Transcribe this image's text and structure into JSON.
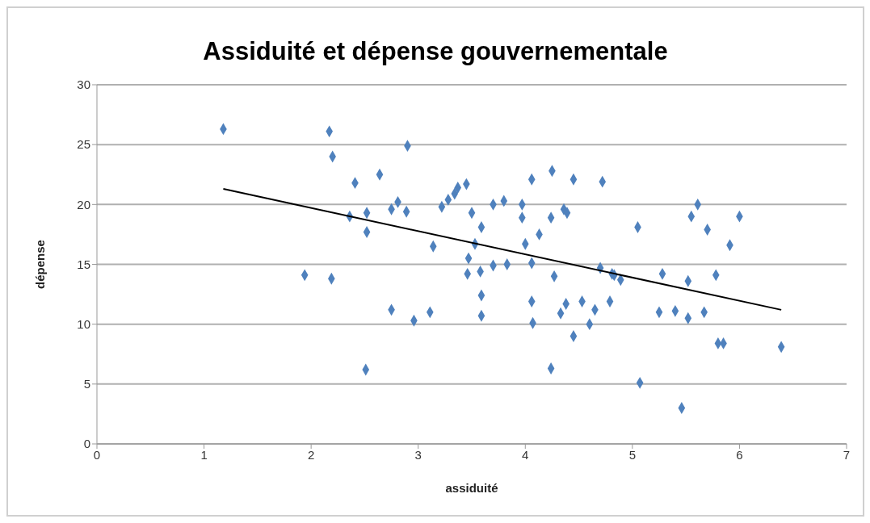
{
  "chart_data": {
    "type": "scatter",
    "title": "Assiduité et dépense gouvernementale",
    "xlabel": "assiduité",
    "ylabel": "dépense",
    "xlim": [
      0,
      7
    ],
    "xticks": [
      0,
      1,
      2,
      3,
      4,
      5,
      6,
      7
    ],
    "ylim": [
      0,
      30
    ],
    "yticks": [
      0,
      5,
      10,
      15,
      20,
      25,
      30
    ],
    "grid": "y",
    "legend": false,
    "series": [
      {
        "color": "#4f81bd",
        "marker": "diamond",
        "x": [
          1.18,
          2.17,
          2.2,
          1.94,
          2.19,
          2.41,
          2.36,
          2.64,
          2.9,
          2.52,
          2.52,
          2.75,
          2.81,
          2.89,
          2.51,
          2.75,
          2.96,
          3.11,
          3.14,
          3.22,
          3.28,
          3.34,
          3.37,
          3.45,
          3.5,
          3.59,
          3.53,
          3.47,
          3.46,
          3.58,
          3.59,
          3.59,
          3.7,
          3.8,
          3.7,
          3.83,
          3.97,
          3.97,
          4.0,
          4.06,
          4.06,
          4.06,
          4.07,
          4.13,
          4.24,
          4.25,
          4.24,
          4.27,
          4.33,
          4.38,
          4.36,
          4.39,
          4.45,
          4.45,
          4.53,
          4.6,
          4.65,
          4.72,
          4.7,
          4.79,
          4.81,
          4.83,
          4.89,
          5.05,
          5.07,
          5.28,
          5.25,
          5.4,
          5.46,
          5.52,
          5.52,
          5.55,
          5.61,
          5.67,
          5.7,
          5.78,
          5.8,
          5.85,
          5.91,
          6.0,
          6.39
        ],
        "values": [
          26.3,
          26.1,
          24.0,
          14.1,
          13.8,
          21.8,
          19.0,
          22.5,
          24.9,
          19.3,
          17.7,
          19.6,
          20.2,
          19.4,
          6.2,
          11.2,
          10.3,
          11.0,
          16.5,
          19.8,
          20.4,
          20.9,
          21.4,
          21.7,
          19.3,
          18.1,
          16.7,
          15.5,
          14.2,
          14.4,
          12.4,
          10.7,
          20.0,
          20.3,
          14.9,
          15.0,
          20.0,
          18.9,
          16.7,
          22.1,
          15.1,
          11.9,
          10.1,
          17.5,
          18.9,
          22.8,
          6.3,
          14.0,
          10.9,
          11.7,
          19.6,
          19.3,
          22.1,
          9.0,
          11.9,
          10.0,
          11.2,
          21.9,
          14.7,
          11.9,
          14.2,
          14.1,
          13.7,
          18.1,
          5.1,
          14.2,
          11.0,
          11.1,
          3.0,
          10.5,
          13.6,
          19.0,
          20.0,
          11.0,
          17.9,
          14.1,
          8.4,
          8.4,
          16.6,
          19.0,
          8.1
        ]
      },
      {
        "type": "line",
        "marker": "none",
        "color": "#000000",
        "x": [
          1.18,
          6.39
        ],
        "values": [
          21.3,
          11.2
        ]
      }
    ]
  }
}
